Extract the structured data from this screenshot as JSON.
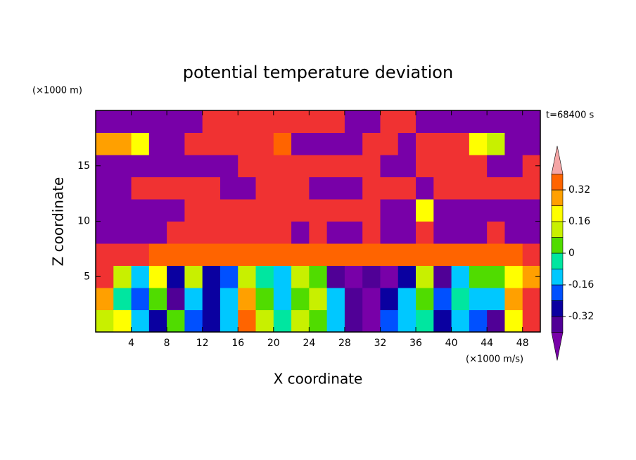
{
  "chart_data": {
    "type": "contour",
    "title": "potential temperature deviation",
    "x_label": "X coordinate",
    "y_label": "Z coordinate",
    "x_unit": "(×1000 m/s)",
    "y_unit": "(×1000 m)",
    "annotation": "t=68400 s",
    "xlim": [
      0,
      50
    ],
    "ylim": [
      0,
      20
    ],
    "xticks": [
      4,
      8,
      12,
      16,
      20,
      24,
      28,
      32,
      36,
      40,
      44,
      48
    ],
    "yticks": [
      5,
      10,
      15
    ],
    "x": [
      1,
      3,
      5,
      7,
      9,
      11,
      13,
      15,
      17,
      19,
      21,
      23,
      25,
      27,
      29,
      31,
      33,
      35,
      37,
      39,
      41,
      43,
      45,
      47,
      49
    ],
    "y": [
      1,
      3,
      5,
      7,
      9,
      11,
      13,
      15,
      17,
      19
    ],
    "z": [
      [
        0.1,
        0.2,
        -0.1,
        -0.3,
        0.05,
        -0.2,
        -0.3,
        -0.1,
        0.35,
        0.1,
        -0.05,
        0.1,
        0.05,
        -0.15,
        -0.35,
        -0.45,
        -0.2,
        -0.1,
        -0.05,
        -0.3,
        -0.1,
        -0.2,
        -0.35,
        0.2,
        0.5
      ],
      [
        0.3,
        -0.05,
        -0.2,
        0,
        -0.35,
        -0.1,
        -0.3,
        -0.1,
        0.25,
        0.05,
        -0.1,
        0.05,
        0.1,
        -0.1,
        -0.4,
        -0.45,
        -0.3,
        -0.15,
        0.05,
        -0.2,
        -0.05,
        -0.1,
        -0.15,
        0.3,
        0.5
      ],
      [
        0.45,
        0.1,
        -0.1,
        0.2,
        -0.25,
        0.15,
        -0.3,
        -0.2,
        0.1,
        -0.05,
        -0.15,
        0.1,
        0.05,
        -0.35,
        -0.45,
        -0.35,
        -0.45,
        -0.3,
        0.15,
        -0.35,
        -0.1,
        0,
        0.05,
        0.2,
        0.3
      ],
      [
        0.5,
        0.5,
        0.5,
        0.35,
        0.35,
        0.35,
        0.35,
        0.35,
        0.35,
        0.35,
        0.35,
        0.35,
        0.35,
        0.35,
        0.35,
        0.35,
        0.35,
        0.35,
        0.35,
        0.35,
        0.35,
        0.35,
        0.35,
        0.35,
        0.5
      ],
      [
        -0.5,
        -0.5,
        -0.5,
        -0.5,
        0.5,
        0.5,
        0.5,
        0.5,
        0.5,
        0.5,
        0.5,
        -0.5,
        0.5,
        -0.5,
        -0.5,
        0.5,
        -0.5,
        -0.5,
        0.5,
        -0.5,
        -0.5,
        -0.5,
        0.5,
        -0.5,
        -0.5
      ],
      [
        -0.5,
        -0.5,
        -0.5,
        -0.5,
        -0.5,
        0.5,
        0.5,
        0.5,
        0.5,
        0.5,
        0.5,
        0.5,
        0.5,
        0.5,
        0.5,
        0.5,
        -0.5,
        -0.5,
        0.2,
        -0.5,
        -0.5,
        -0.5,
        -0.5,
        -0.5,
        -0.5
      ],
      [
        -0.5,
        -0.5,
        0.5,
        0.5,
        0.5,
        0.5,
        0.5,
        -0.5,
        -0.5,
        0.5,
        0.5,
        0.5,
        -0.5,
        -0.5,
        -0.5,
        0.5,
        0.5,
        0.5,
        -0.5,
        0.5,
        0.5,
        0.5,
        0.5,
        0.5,
        0.5
      ],
      [
        -0.5,
        -0.5,
        -0.5,
        -0.5,
        -0.5,
        -0.5,
        -0.5,
        -0.5,
        0.5,
        0.5,
        0.5,
        0.5,
        0.5,
        0.5,
        0.5,
        0.5,
        -0.5,
        -0.5,
        0.5,
        0.5,
        0.5,
        0.5,
        -0.5,
        -0.5,
        0.5
      ],
      [
        0.3,
        0.3,
        0.2,
        -0.5,
        -0.5,
        0.5,
        0.5,
        0.5,
        0.5,
        0.5,
        0.35,
        -0.5,
        -0.5,
        -0.5,
        -0.5,
        0.5,
        0.5,
        -0.5,
        0.5,
        0.5,
        0.5,
        0.2,
        0.1,
        -0.5,
        -0.5
      ],
      [
        -0.5,
        -0.5,
        -0.5,
        -0.5,
        -0.5,
        -0.5,
        0.5,
        0.5,
        0.5,
        0.5,
        0.5,
        0.5,
        0.5,
        0.5,
        -0.5,
        -0.5,
        0.5,
        0.5,
        -0.5,
        -0.5,
        -0.5,
        -0.5,
        -0.5,
        -0.5,
        -0.5
      ]
    ],
    "levels": [
      -0.4,
      -0.32,
      -0.24,
      -0.16,
      -0.08,
      0,
      0.08,
      0.16,
      0.24,
      0.32,
      0.4
    ],
    "colors": [
      "#7800a8",
      "#500096",
      "#0a00a0",
      "#0050ff",
      "#00c8ff",
      "#00e6a0",
      "#50dc00",
      "#c8f000",
      "#ffff00",
      "#ffa000",
      "#ff6400",
      "#f03232",
      "#f5a5a5"
    ],
    "colorbar_ticks": [
      -0.32,
      -0.16,
      0,
      0.16,
      0.32
    ]
  }
}
